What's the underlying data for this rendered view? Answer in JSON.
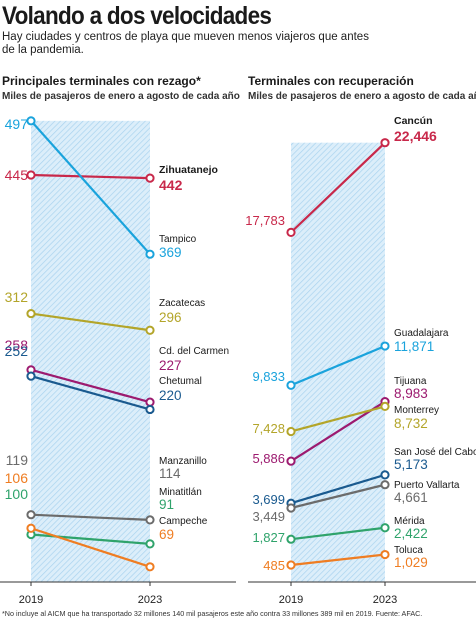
{
  "title": "Volando a dos velocidades",
  "subtitle": "Hay ciudades y centros de playa que mueven menos viajeros que antes de la pandemia.",
  "footnote": "*No incluye al AICM que ha transportado 32 millones 140 mil pasajeros este año contra 33 millones 389 mil en 2019. Fuente: AFAC.",
  "chart_data": [
    {
      "type": "line",
      "title": "Principales terminales con rezago*",
      "subtitle": "Miles de pasajeros de enero a agosto de cada año",
      "x": [
        "2019",
        "2023"
      ],
      "series": [
        {
          "name": "Zihuatanejo",
          "values": [
            445,
            442
          ],
          "color": "#c8284a",
          "labels": [
            "445",
            "442"
          ],
          "highlight": true
        },
        {
          "name": "Tampico",
          "values": [
            497,
            369
          ],
          "color": "#1aa3dc",
          "labels": [
            "497",
            "369"
          ]
        },
        {
          "name": "Zacatecas",
          "values": [
            312,
            296
          ],
          "color": "#b3a52a",
          "labels": [
            "312",
            "296"
          ]
        },
        {
          "name": "Cd. del Carmen",
          "values": [
            258,
            227
          ],
          "color": "#9c1a6f",
          "labels": [
            "258",
            "227"
          ]
        },
        {
          "name": "Chetumal",
          "values": [
            252,
            220
          ],
          "color": "#1a5a8f",
          "labels": [
            "252",
            "220"
          ]
        },
        {
          "name": "Manzanillo",
          "values": [
            119,
            114
          ],
          "color": "#6b6b6b",
          "labels": [
            "119",
            "114"
          ]
        },
        {
          "name": "Minatitlán",
          "values": [
            100,
            91
          ],
          "color": "#2fa36b",
          "labels": [
            "100",
            "91"
          ]
        },
        {
          "name": "Campeche",
          "values": [
            106,
            69
          ],
          "color": "#ef7d22",
          "labels": [
            "106",
            "69"
          ]
        }
      ]
    },
    {
      "type": "line",
      "title": "Terminales con recuperación",
      "subtitle": "Miles de pasajeros de enero a agosto de cada año",
      "x": [
        "2019",
        "2023"
      ],
      "series": [
        {
          "name": "Cancún",
          "values": [
            17783,
            22446
          ],
          "color": "#c8284a",
          "labels": [
            "17,783",
            "22,446"
          ],
          "highlight": true
        },
        {
          "name": "Guadalajara",
          "values": [
            9833,
            11871
          ],
          "color": "#1aa3dc",
          "labels": [
            "9,833",
            "11,871"
          ]
        },
        {
          "name": "Tijuana",
          "values": [
            5886,
            8983
          ],
          "color": "#9c1a6f",
          "labels": [
            "5,886",
            "8,983"
          ]
        },
        {
          "name": "Monterrey",
          "values": [
            7428,
            8732
          ],
          "color": "#b3a52a",
          "labels": [
            "7,428",
            "8,732"
          ]
        },
        {
          "name": "San José del Cabo",
          "values": [
            3699,
            5173
          ],
          "color": "#1a5a8f",
          "labels": [
            "3,699",
            "5,173"
          ]
        },
        {
          "name": "Puerto Vallarta",
          "values": [
            3449,
            4661
          ],
          "color": "#6b6b6b",
          "labels": [
            "3,449",
            "4,661"
          ]
        },
        {
          "name": "Mérida",
          "values": [
            1827,
            2422
          ],
          "color": "#2fa36b",
          "labels": [
            "1,827",
            "2,422"
          ]
        },
        {
          "name": "Toluca",
          "values": [
            485,
            1029
          ],
          "color": "#ef7d22",
          "labels": [
            "485",
            "1,029"
          ]
        }
      ]
    }
  ]
}
